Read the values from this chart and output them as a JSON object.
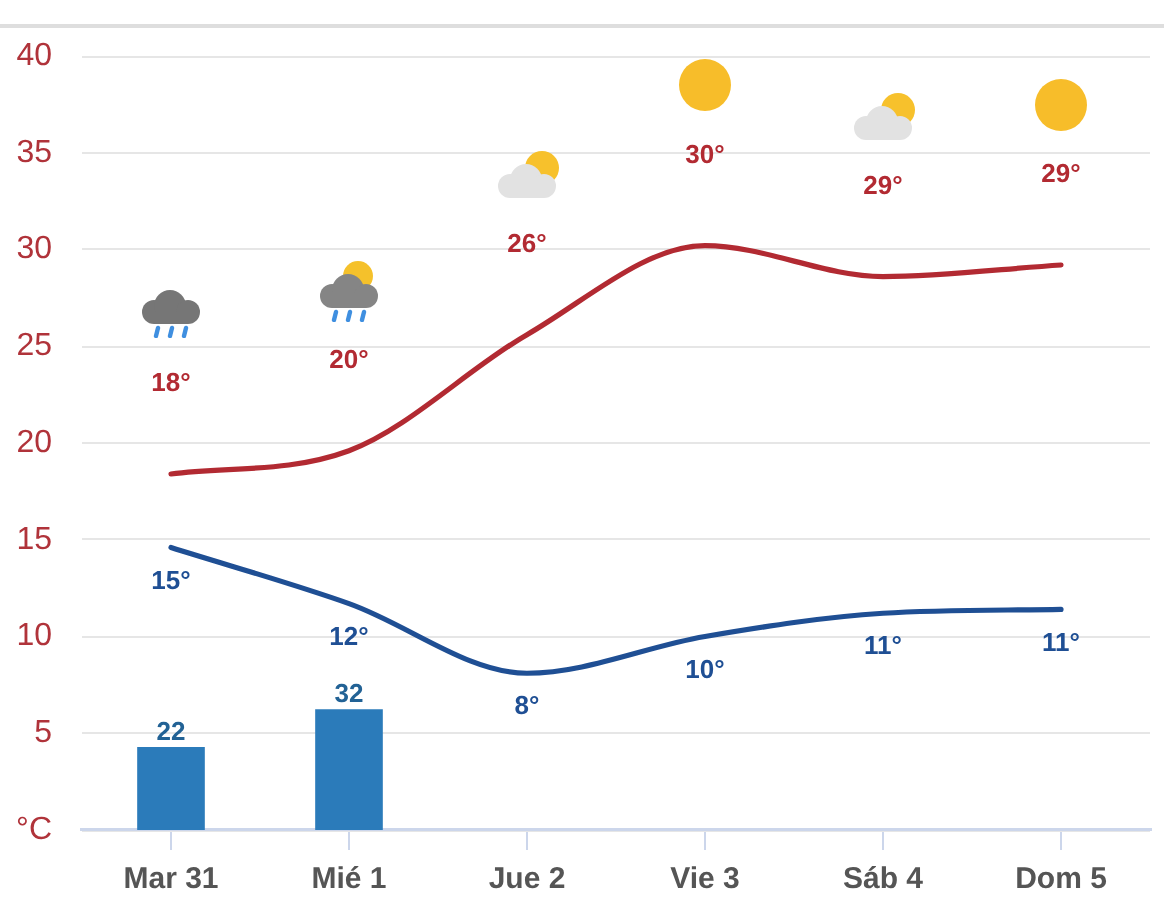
{
  "chart_data": {
    "type": "line",
    "categories": [
      "Mar 31",
      "Mié 1",
      "Jue 2",
      "Vie 3",
      "Sáb 4",
      "Dom 5"
    ],
    "series": [
      {
        "type": "bar",
        "color": "#2b7bba",
        "axis": "y2",
        "values": [
          22,
          32,
          null,
          null,
          null,
          null
        ],
        "value_labels": [
          "22",
          "32",
          null,
          null,
          null,
          null
        ]
      },
      {
        "color": "#b22a32",
        "values": [
          18.4,
          19.6,
          25.6,
          30.2,
          28.6,
          29.2
        ],
        "value_labels": [
          "18°",
          "20°",
          "26°",
          "30°",
          "29°",
          "29°"
        ]
      },
      {
        "color": "#1f4f94",
        "values": [
          14.6,
          11.7,
          8.1,
          10.0,
          11.2,
          11.4
        ],
        "value_labels": [
          "15°",
          "12°",
          "8°",
          "10°",
          "11°",
          "11°"
        ]
      }
    ],
    "ylim": [
      0,
      40
    ],
    "yticks": [
      {
        "value": 0,
        "label": "°C"
      },
      5,
      10,
      15,
      20,
      25,
      30,
      35,
      40
    ],
    "y2lim": [
      0,
      205
    ],
    "grid": "y",
    "legend": false,
    "marker": "none"
  }
}
